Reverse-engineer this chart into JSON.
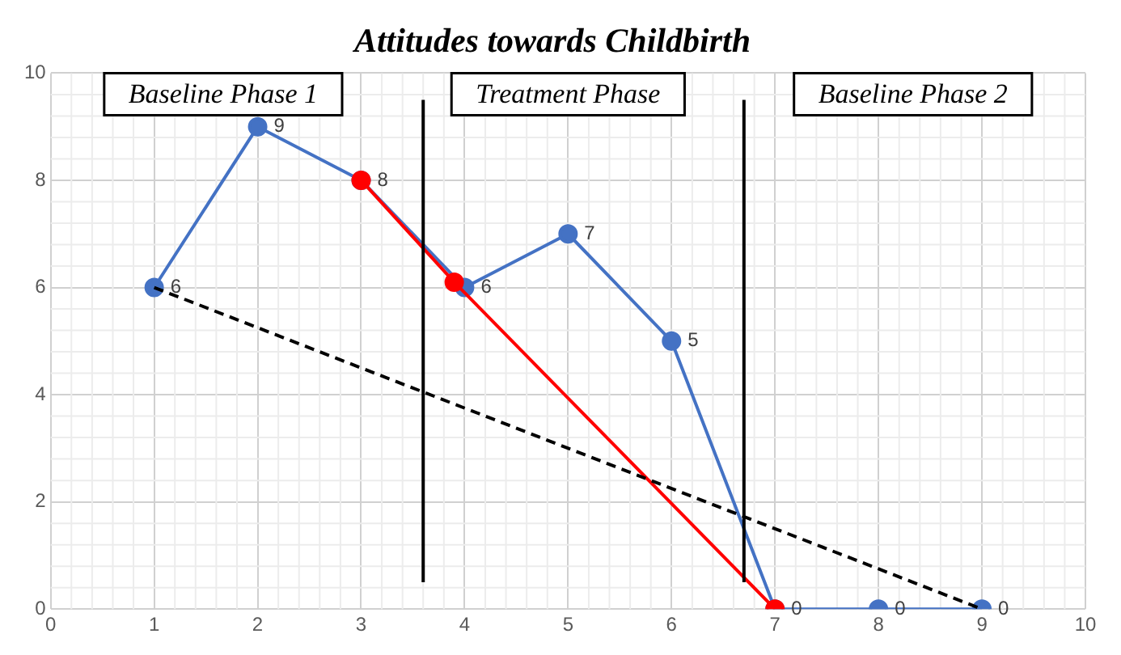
{
  "chart_data": {
    "type": "line",
    "title": "Attitudes towards Childbirth",
    "annotations": [
      "Baseline Phase 1",
      "Treatment Phase",
      "Baseline Phase 2"
    ],
    "xlim": [
      0,
      10
    ],
    "xticks": [
      0,
      1,
      2,
      3,
      4,
      5,
      6,
      7,
      8,
      9,
      10
    ],
    "ylim": [
      0,
      10
    ],
    "yticks": [
      0,
      2,
      4,
      6,
      8,
      10
    ],
    "grid": true,
    "legend": false,
    "series": [
      {
        "color": "#4472c4",
        "x": [
          1,
          2,
          3,
          4,
          5,
          6,
          7,
          8,
          9
        ],
        "values": [
          6,
          9,
          8,
          6,
          7,
          5,
          0,
          0,
          0
        ],
        "marker": "circle",
        "value_labels": [
          "6",
          "9",
          "8",
          "6",
          "7",
          "5",
          "0",
          "0",
          "0"
        ]
      },
      {
        "color": "#ff0000",
        "x": [
          3,
          3.9,
          7
        ],
        "values": [
          8,
          6.1,
          0
        ],
        "marker": "circle"
      },
      {
        "color": "#000000",
        "x": [
          1,
          9
        ],
        "values": [
          6,
          0
        ],
        "marker": "none",
        "line_style": "dashed"
      },
      {
        "color": "#000000",
        "x": [
          3.6,
          3.6
        ],
        "values": [
          0.5,
          9.5
        ],
        "marker": "none"
      },
      {
        "color": "#000000",
        "x": [
          6.7,
          6.7
        ],
        "values": [
          0.5,
          9.5
        ],
        "marker": "none"
      }
    ]
  }
}
